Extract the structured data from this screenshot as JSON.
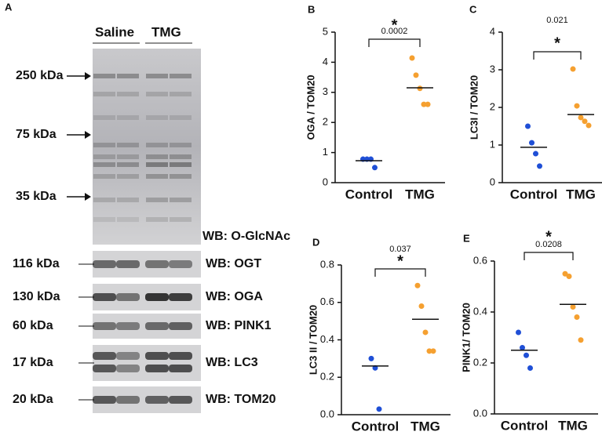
{
  "blot": {
    "panel": "A",
    "groups": [
      "Saline",
      "TMG"
    ],
    "markers": [
      "250 kDa",
      "75 kDa",
      "35 kDa"
    ],
    "main_label": "WB: O-GlcNAc",
    "strips": [
      {
        "size": "116 kDa",
        "label": "WB: OGT"
      },
      {
        "size": "130 kDa",
        "label": "WB: OGA"
      },
      {
        "size": "60 kDa",
        "label": "WB: PINK1"
      },
      {
        "size": "17 kDa",
        "label": "WB: LC3"
      },
      {
        "size": "20 kDa",
        "label": "WB: TOM20"
      }
    ]
  },
  "chart_data": [
    {
      "type": "dot",
      "panel": "B",
      "ylabel": "OGA / TOM20",
      "categories": [
        "Control",
        "TMG"
      ],
      "colors": [
        "#1f4fd6",
        "#f5a030"
      ],
      "values": [
        [
          0.78,
          0.78,
          0.78,
          0.5
        ],
        [
          4.14,
          3.57,
          3.13,
          2.6,
          2.6
        ]
      ],
      "medians": [
        0.73,
        3.15
      ],
      "significance": "*",
      "p_value": "0.0002",
      "ylim": [
        0,
        5
      ],
      "yticks": [
        0,
        1,
        2,
        3,
        4,
        5
      ]
    },
    {
      "type": "dot",
      "panel": "C",
      "ylabel": "LC3I / TOM20",
      "categories": [
        "Control",
        "TMG"
      ],
      "colors": [
        "#1f4fd6",
        "#f5a030"
      ],
      "values": [
        [
          1.5,
          1.06,
          0.77,
          0.44
        ],
        [
          3.02,
          2.04,
          1.73,
          1.63,
          1.52
        ]
      ],
      "medians": [
        0.94,
        1.81
      ],
      "significance": "*",
      "p_value": "0.021",
      "ylim": [
        0,
        4
      ],
      "yticks": [
        0,
        1,
        2,
        3,
        4
      ]
    },
    {
      "type": "dot",
      "panel": "D",
      "ylabel": "LC3 II / TOM20",
      "categories": [
        "Control",
        "TMG"
      ],
      "colors": [
        "#1f4fd6",
        "#f5a030"
      ],
      "values": [
        [
          0.3,
          0.25,
          0.03
        ],
        [
          0.69,
          0.58,
          0.44,
          0.34,
          0.34
        ]
      ],
      "medians": [
        0.26,
        0.51
      ],
      "significance": "*",
      "p_value": "0.037",
      "ylim": [
        0,
        0.8
      ],
      "yticks": [
        {
          "value": 0,
          "label": "0.0"
        },
        0.2,
        0.4,
        0.6,
        0.8
      ]
    },
    {
      "type": "dot",
      "panel": "E",
      "ylabel": "PINK1/ TOM20",
      "categories": [
        "Control",
        "TMG"
      ],
      "colors": [
        "#1f4fd6",
        "#f5a030"
      ],
      "values": [
        [
          0.32,
          0.26,
          0.23,
          0.18
        ],
        [
          0.55,
          0.54,
          0.42,
          0.38,
          0.29
        ]
      ],
      "medians": [
        0.25,
        0.43
      ],
      "significance": "*",
      "p_value": "0.0208",
      "ylim": [
        0,
        0.6
      ],
      "yticks": [
        {
          "value": 0,
          "label": "0.0"
        },
        0.2,
        0.4,
        0.6
      ]
    }
  ]
}
